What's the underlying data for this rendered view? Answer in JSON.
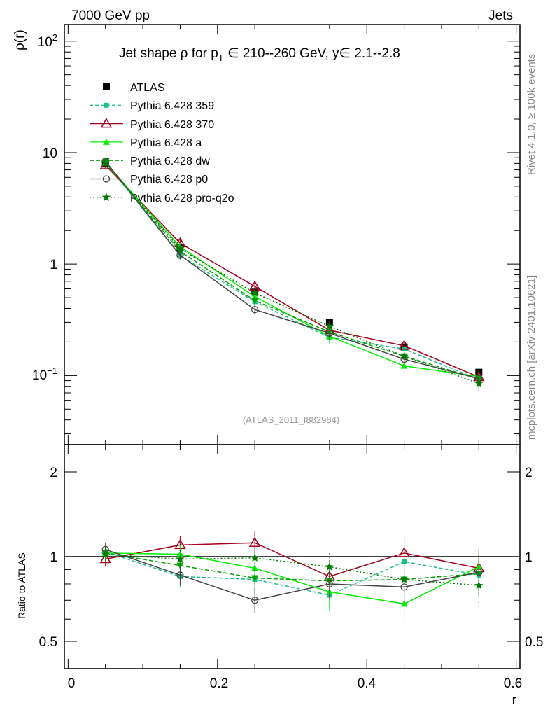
{
  "header": {
    "left": "7000 GeV pp",
    "right": "Jets"
  },
  "side_top": "Rivet 4.1.0, ≥ 100k events",
  "side_bottom": "mcplots.cern.ch [arXiv:2401.10621]",
  "watermark": "(ATLAS_2011_I882984)",
  "title": {
    "prefix": "Jet shape ρ for p",
    "sub": "T",
    "suffix": " ∈ 210--260 GeV, y∈ 2.1--2.8"
  },
  "chart_data": {
    "type": "line",
    "x": [
      0.05,
      0.15,
      0.25,
      0.35,
      0.45,
      0.55
    ],
    "xlabel": "r",
    "ylabel": "ρ(r)",
    "ratio_ylabel": "Ratio to ATLAS",
    "xlim": [
      -0.005,
      0.605
    ],
    "ylim": [
      0.024,
      141
    ],
    "ratio_ylim": [
      0.4,
      2.5
    ],
    "yscale": "log",
    "xticks": [
      "0",
      "0.2",
      "0.4",
      "0.6"
    ],
    "yticks": [
      "10^-1",
      "1",
      "10",
      "10^2"
    ],
    "ratio_yticks": [
      "0.5",
      "1",
      "2"
    ],
    "legend_placement": "top-left",
    "data": {
      "name": "ATLAS",
      "color": "#000000",
      "values": [
        7.9,
        1.4,
        0.56,
        0.3,
        0.18,
        0.107
      ],
      "errors": [
        0.3,
        0.08,
        0.04,
        0.02,
        0.015,
        0.008
      ]
    },
    "series": [
      {
        "name": "Pythia 6.428 359",
        "color": "#1abf8a",
        "dash": "5,3",
        "marker": "square",
        "values": [
          8.2,
          1.19,
          0.46,
          0.22,
          0.173,
          0.092
        ],
        "ratio": [
          1.04,
          0.85,
          0.83,
          0.73,
          0.96,
          0.86
        ]
      },
      {
        "name": "Pythia 6.428 370",
        "color": "#a0001e",
        "dash": "",
        "marker": "open-triangle",
        "values": [
          7.7,
          1.54,
          0.63,
          0.255,
          0.185,
          0.097
        ],
        "ratio": [
          0.98,
          1.1,
          1.12,
          0.85,
          1.03,
          0.91
        ]
      },
      {
        "name": "Pythia 6.428 a",
        "color": "#00ee00",
        "dash": "",
        "marker": "triangle",
        "values": [
          8.1,
          1.43,
          0.51,
          0.225,
          0.122,
          0.098
        ],
        "ratio": [
          1.03,
          1.02,
          0.91,
          0.75,
          0.68,
          0.92
        ]
      },
      {
        "name": "Pythia 6.428 dw",
        "color": "#00a000",
        "dash": "6,3",
        "marker": "inverted-triangle",
        "values": [
          8.1,
          1.3,
          0.47,
          0.246,
          0.149,
          0.093
        ],
        "ratio": [
          1.03,
          0.93,
          0.84,
          0.82,
          0.83,
          0.87
        ]
      },
      {
        "name": "Pythia 6.428 p0",
        "color": "#444444",
        "dash": "",
        "marker": "open-circle",
        "values": [
          8.4,
          1.2,
          0.39,
          0.24,
          0.14,
          0.094
        ],
        "ratio": [
          1.06,
          0.86,
          0.7,
          0.8,
          0.78,
          0.88
        ]
      },
      {
        "name": "Pythia 6.428 pro-q2o",
        "color": "#007a00",
        "dash": "2,3",
        "marker": "star",
        "values": [
          8.1,
          1.37,
          0.55,
          0.276,
          0.149,
          0.085
        ],
        "ratio": [
          1.02,
          0.98,
          0.99,
          0.92,
          0.83,
          0.79
        ]
      }
    ]
  }
}
